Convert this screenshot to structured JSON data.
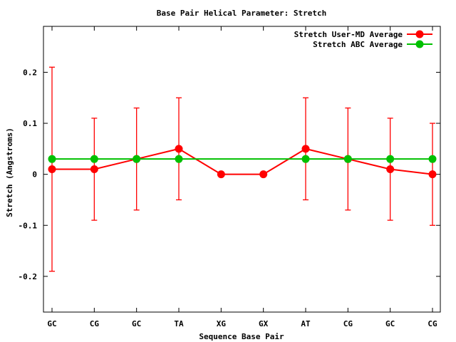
{
  "chart_data": {
    "type": "line",
    "title": "Base Pair Helical Parameter: Stretch",
    "xlabel": "Sequence Base Pair",
    "ylabel": "Stretch (Angstroms)",
    "categories": [
      "GC",
      "CG",
      "GC",
      "TA",
      "XG",
      "GX",
      "AT",
      "CG",
      "GC",
      "CG"
    ],
    "ylim": [
      -0.27,
      0.29
    ],
    "yticks": [
      -0.2,
      -0.1,
      0,
      0.1,
      0.2
    ],
    "ytick_labels": [
      "-0.2",
      "-0.1",
      "0",
      "0.1",
      "0.2"
    ],
    "grid": false,
    "legend_position": "top-right",
    "series": [
      {
        "name": "Stretch User-MD Average",
        "color": "#ff0000",
        "values": [
          0.01,
          0.01,
          0.03,
          0.05,
          0.0,
          0.0,
          0.05,
          0.03,
          0.01,
          0.0
        ],
        "error_bars": [
          [
            -0.19,
            0.21
          ],
          [
            -0.09,
            0.11
          ],
          [
            -0.07,
            0.13
          ],
          [
            -0.05,
            0.15
          ],
          null,
          null,
          [
            -0.05,
            0.15
          ],
          [
            -0.07,
            0.13
          ],
          [
            -0.09,
            0.11
          ],
          [
            -0.1,
            0.1
          ]
        ]
      },
      {
        "name": "Stretch ABC Average",
        "color": "#00c000",
        "values": [
          0.03,
          0.03,
          0.03,
          0.03,
          null,
          null,
          0.03,
          0.03,
          0.03,
          0.03
        ]
      }
    ]
  }
}
